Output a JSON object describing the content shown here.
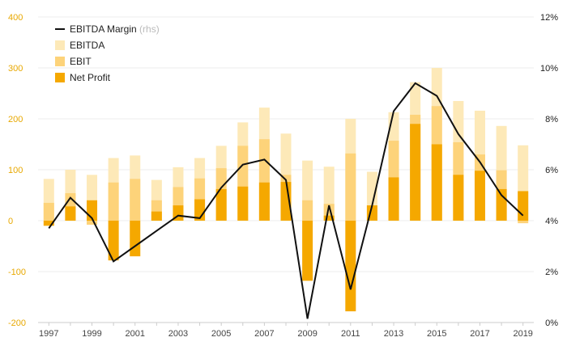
{
  "chart_data": {
    "type": "bar",
    "bar_mode": "overlay",
    "categories": [
      "1997",
      "1998",
      "1999",
      "2000",
      "2001",
      "2002",
      "2003",
      "2004",
      "2005",
      "2006",
      "2007",
      "2008",
      "2009",
      "2010",
      "2011",
      "2012",
      "2013",
      "2014",
      "2015",
      "2016",
      "2017",
      "2018",
      "2019"
    ],
    "x_tick_labels": [
      "1997",
      "1999",
      "2001",
      "2003",
      "2005",
      "2007",
      "2009",
      "2011",
      "2013",
      "2015",
      "2017",
      "2019"
    ],
    "series": [
      {
        "name": "EBITDA",
        "axis": "left",
        "kind": "bar",
        "color": "#fde9b8",
        "values": [
          82,
          100,
          90,
          123,
          128,
          80,
          105,
          123,
          147,
          193,
          222,
          171,
          118,
          106,
          200,
          96,
          213,
          272,
          300,
          235,
          216,
          186,
          148
        ]
      },
      {
        "name": "EBIT",
        "axis": "left",
        "kind": "bar",
        "color": "#fdd37a",
        "values": [
          35,
          54,
          -8,
          75,
          82,
          40,
          66,
          83,
          103,
          147,
          160,
          90,
          40,
          33,
          132,
          30,
          157,
          208,
          225,
          154,
          130,
          99,
          -5
        ]
      },
      {
        "name": "Net Profit",
        "axis": "left",
        "kind": "bar",
        "color": "#f5a800",
        "values": [
          -10,
          28,
          40,
          -78,
          -70,
          18,
          30,
          42,
          62,
          67,
          75,
          76,
          -118,
          10,
          -178,
          30,
          85,
          190,
          150,
          90,
          98,
          62,
          58
        ]
      },
      {
        "name": "EBITDA Margin",
        "axis_note": "(rhs)",
        "axis": "right",
        "kind": "line",
        "color": "#111111",
        "values": [
          3.7,
          4.9,
          4.1,
          2.4,
          3.0,
          3.6,
          4.2,
          4.1,
          5.3,
          6.2,
          6.4,
          5.6,
          0.15,
          4.6,
          1.3,
          4.6,
          8.3,
          9.4,
          8.9,
          7.4,
          6.3,
          5.0,
          4.2
        ]
      }
    ],
    "y_left": {
      "ylim": [
        -200,
        400
      ],
      "ticks": [
        -200,
        -100,
        0,
        100,
        200,
        300,
        400
      ],
      "tick_labels": [
        "-200",
        "-100",
        "0",
        "100",
        "200",
        "300",
        "400"
      ]
    },
    "y_right": {
      "ylim": [
        0,
        12
      ],
      "ticks": [
        0,
        2,
        4,
        6,
        8,
        10,
        12
      ],
      "tick_labels": [
        "0%",
        "2%",
        "4%",
        "6%",
        "8%",
        "10%",
        "12%"
      ]
    },
    "grid": true,
    "legend_position": "top-left",
    "title": "",
    "xlabel": "",
    "ylabel": ""
  }
}
